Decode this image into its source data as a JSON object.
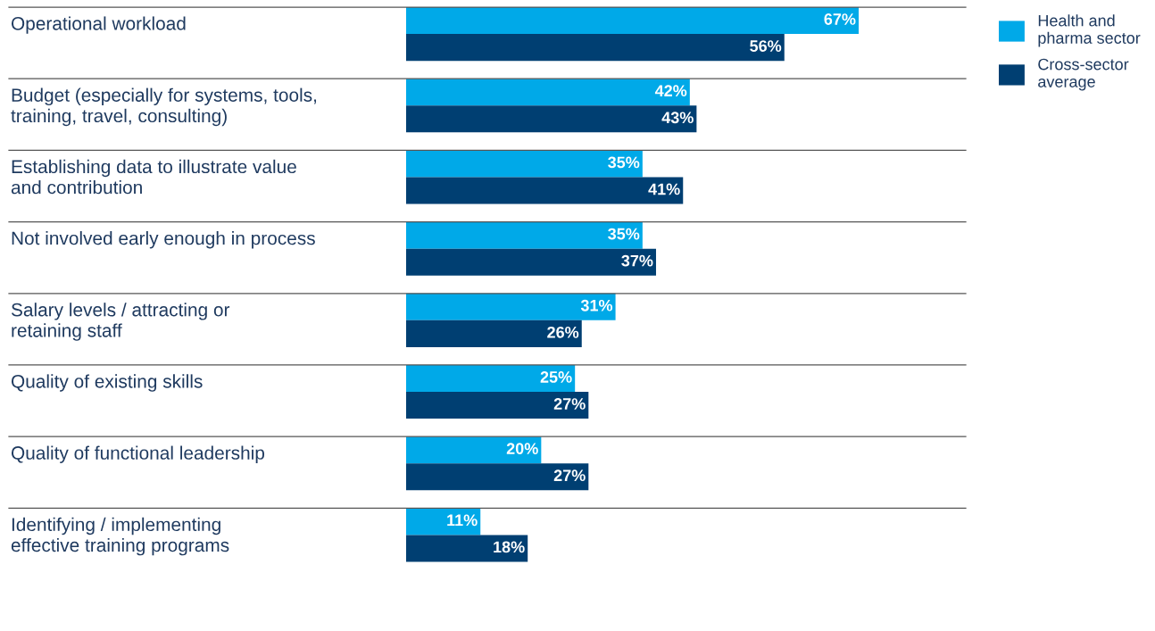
{
  "chart_data": {
    "type": "bar",
    "orientation": "horizontal",
    "categories": [
      "Operational workload",
      "Budget (especially for systems, tools,\ntraining, travel, consulting)",
      "Establishing data to illustrate value\nand contribution",
      "Not involved early enough in process",
      "Salary levels / attracting or\nretaining staff",
      "Quality of existing skills",
      "Quality of functional leadership",
      "Identifying / implementing\neffective training programs"
    ],
    "series": [
      {
        "name": "Health and\npharma sector",
        "color": "#00a9e8",
        "values": [
          67,
          42,
          35,
          35,
          31,
          25,
          20,
          11
        ],
        "value_labels": [
          "67%",
          "42%",
          "35%",
          "35%",
          "31%",
          "25%",
          "20%",
          "11%"
        ]
      },
      {
        "name": "Cross-sector\naverage",
        "color": "#003f72",
        "values": [
          56,
          43,
          41,
          37,
          26,
          27,
          27,
          18
        ],
        "value_labels": [
          "56%",
          "43%",
          "41%",
          "37%",
          "26%",
          "27%",
          "27%",
          "18%"
        ]
      }
    ],
    "grid": "y",
    "legend": "top right"
  }
}
